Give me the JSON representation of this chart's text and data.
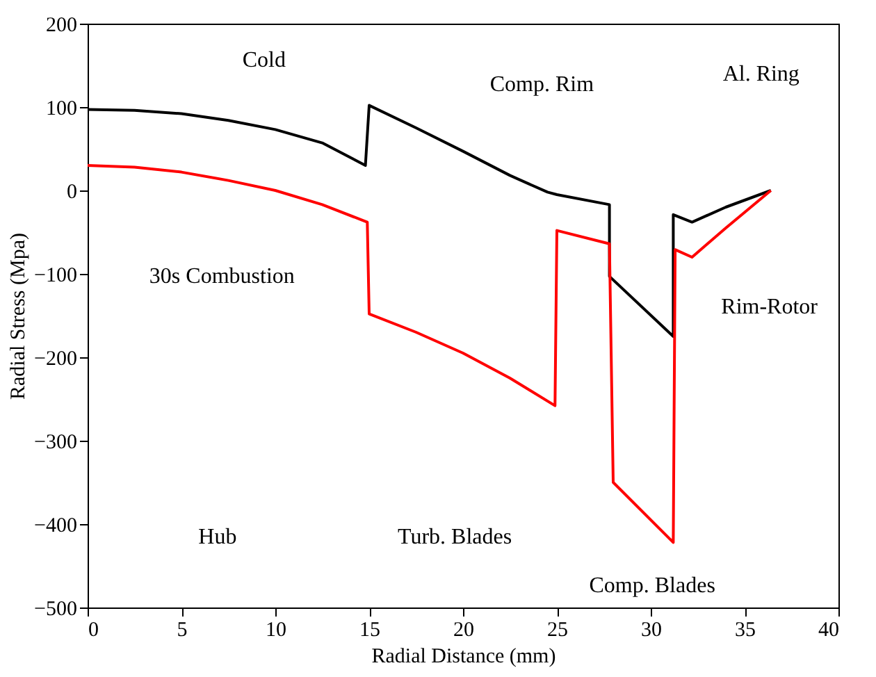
{
  "chart_data": {
    "type": "line",
    "xlabel": "Radial Distance (mm)",
    "ylabel": "Radial Stress (Mpa)",
    "xlim": [
      0,
      40
    ],
    "xticks": [
      0,
      5,
      10,
      15,
      20,
      25,
      30,
      35,
      40
    ],
    "ylim": [
      -500,
      200
    ],
    "yticks": [
      -500,
      -400,
      -300,
      -200,
      -100,
      0,
      100,
      200
    ],
    "grid": false,
    "marker": "none",
    "line_style": "solid",
    "series": [
      {
        "color": "#000000",
        "x": [
          0,
          2.5,
          5,
          7.5,
          10,
          12.5,
          14.8,
          15,
          17.5,
          20,
          22.5,
          24.5,
          25,
          27.8,
          27.8,
          31.2,
          31.2,
          32.2,
          34,
          36.4
        ],
        "values": [
          97,
          96,
          92,
          84,
          73,
          57,
          30,
          102,
          75,
          47,
          18,
          -2,
          -5,
          -17,
          -103,
          -175,
          -29,
          -38,
          -20,
          0
        ]
      },
      {
        "color": "#ff0000",
        "x": [
          0,
          2.5,
          5,
          7.5,
          10,
          12.5,
          14.9,
          15,
          17.5,
          20,
          22.5,
          24.9,
          25,
          27.8,
          28,
          31.2,
          31.3,
          32.2,
          34,
          36.4
        ],
        "values": [
          30,
          28,
          22,
          12,
          0,
          -17,
          -38,
          -148,
          -170,
          -195,
          -225,
          -258,
          -48,
          -64,
          -350,
          -422,
          -71,
          -80,
          -45,
          0
        ]
      }
    ],
    "annotations": [
      "Cold",
      "30s Combustion",
      "Comp. Rim",
      "Al. Ring",
      "Rim-Rotor",
      "Hub",
      "Turb. Blades",
      "Comp. Blades"
    ]
  }
}
